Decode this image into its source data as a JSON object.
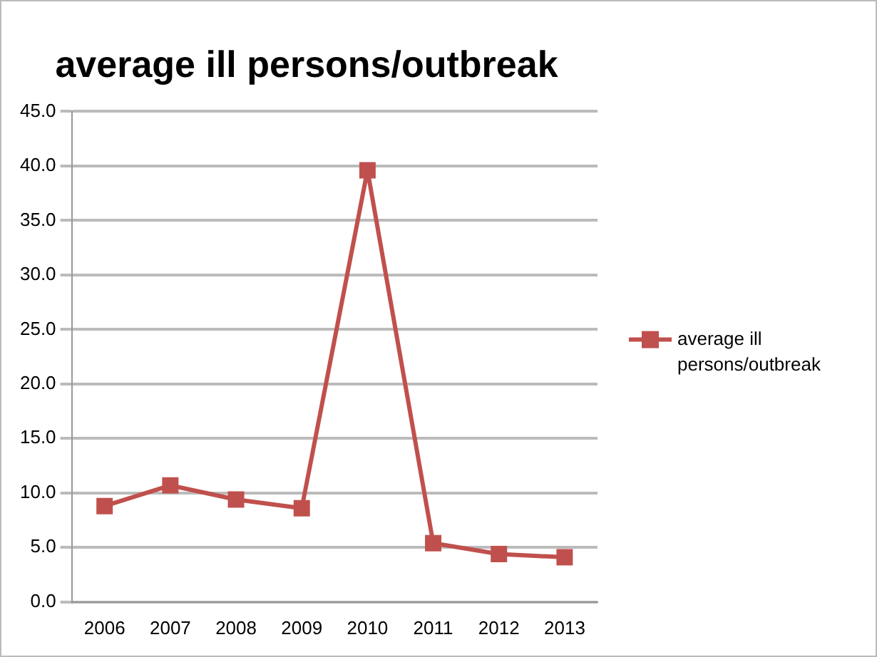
{
  "chart_data": {
    "type": "line",
    "title": "average ill persons/outbreak",
    "categories": [
      "2006",
      "2007",
      "2008",
      "2009",
      "2010",
      "2011",
      "2012",
      "2013"
    ],
    "series": [
      {
        "name": "average ill persons/outbreak",
        "color": "#c0504d",
        "values": [
          8.8,
          10.7,
          9.4,
          8.6,
          39.6,
          5.4,
          4.4,
          4.1
        ]
      }
    ],
    "ylim": [
      0,
      45
    ],
    "yticks": [
      {
        "value": 0,
        "label": "0.0"
      },
      {
        "value": 5,
        "label": "5.0"
      },
      {
        "value": 10,
        "label": "10.0"
      },
      {
        "value": 15,
        "label": "15.0"
      },
      {
        "value": 20,
        "label": "20.0"
      },
      {
        "value": 25,
        "label": "25.0"
      },
      {
        "value": 30,
        "label": "30.0"
      },
      {
        "value": 35,
        "label": "35.0"
      },
      {
        "value": 40,
        "label": "40.0"
      },
      {
        "value": 45,
        "label": "45.0"
      }
    ],
    "grid": "y",
    "legend": "right",
    "marker": "square",
    "line_style": "solid"
  }
}
